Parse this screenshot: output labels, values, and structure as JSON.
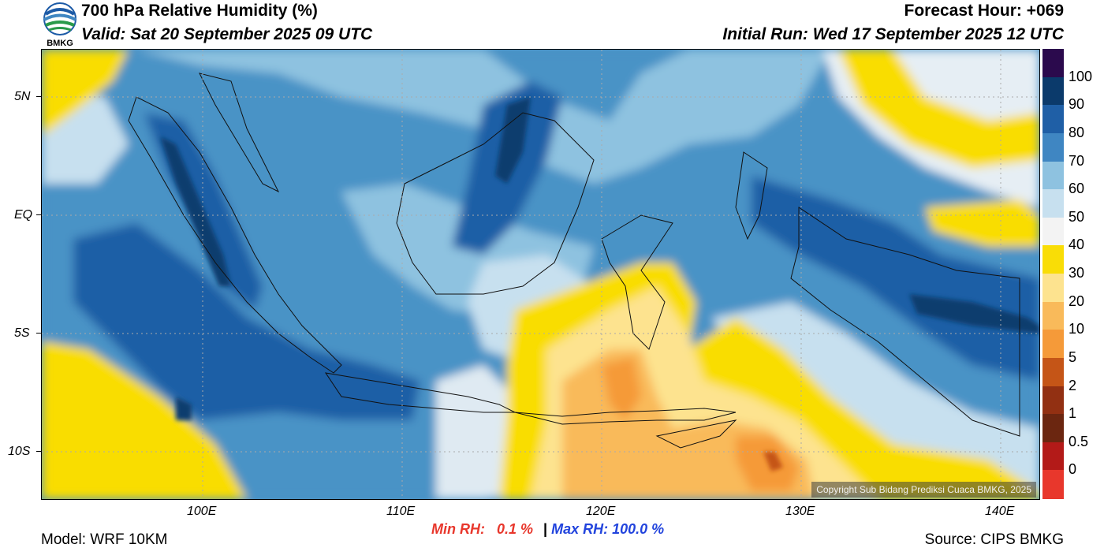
{
  "header": {
    "logo_text": "BMKG",
    "title": "700 hPa Relative Humidity (%)",
    "valid": "Valid: Sat 20 September 2025 09 UTC",
    "forecast_hour": "Forecast Hour: +069",
    "initial_run": "Initial Run: Wed 17 September 2025 12 UTC"
  },
  "map": {
    "lat_labels": [
      "5N",
      "EQ",
      "5S",
      "10S"
    ],
    "lon_labels": [
      "100E",
      "110E",
      "120E",
      "130E",
      "140E"
    ],
    "copyright": "Copyright Sub Bidang Prediksi Cuaca BMKG, 2025",
    "colors": {
      "ocean_high": "#4a93c6",
      "very_high": "#1f5fa6",
      "dark": "#0d3c6e",
      "medium": "#8ec2e0",
      "light": "#c7e0ef",
      "near_white": "#f3f3f3",
      "yellow": "#f9dd06",
      "light_orange": "#fde38f",
      "orange": "#f9ba5a",
      "dark_orange": "#f59a39",
      "brown": "#c55517"
    }
  },
  "colorbar": {
    "levels": [
      "100",
      "90",
      "80",
      "70",
      "60",
      "50",
      "40",
      "30",
      "20",
      "10",
      "5",
      "2",
      "1",
      "0.5",
      "0"
    ],
    "colors": [
      "#2b0a4d",
      "#0b3a6b",
      "#1f5fa6",
      "#3f86c2",
      "#8ec2e0",
      "#c7e0ef",
      "#f3f3f3",
      "#f9dd06",
      "#fde38f",
      "#f9ba5a",
      "#f59a39",
      "#c55517",
      "#923012",
      "#6b2610",
      "#b31a18",
      "#e8372c"
    ]
  },
  "stats": {
    "min_label": "Min RH:",
    "min_value": "0.1 %",
    "separator": "|",
    "max_label": "Max RH:",
    "max_value": "100.0 %"
  },
  "footer": {
    "model": "Model: WRF 10KM",
    "source": "Source: CIPS BMKG"
  }
}
